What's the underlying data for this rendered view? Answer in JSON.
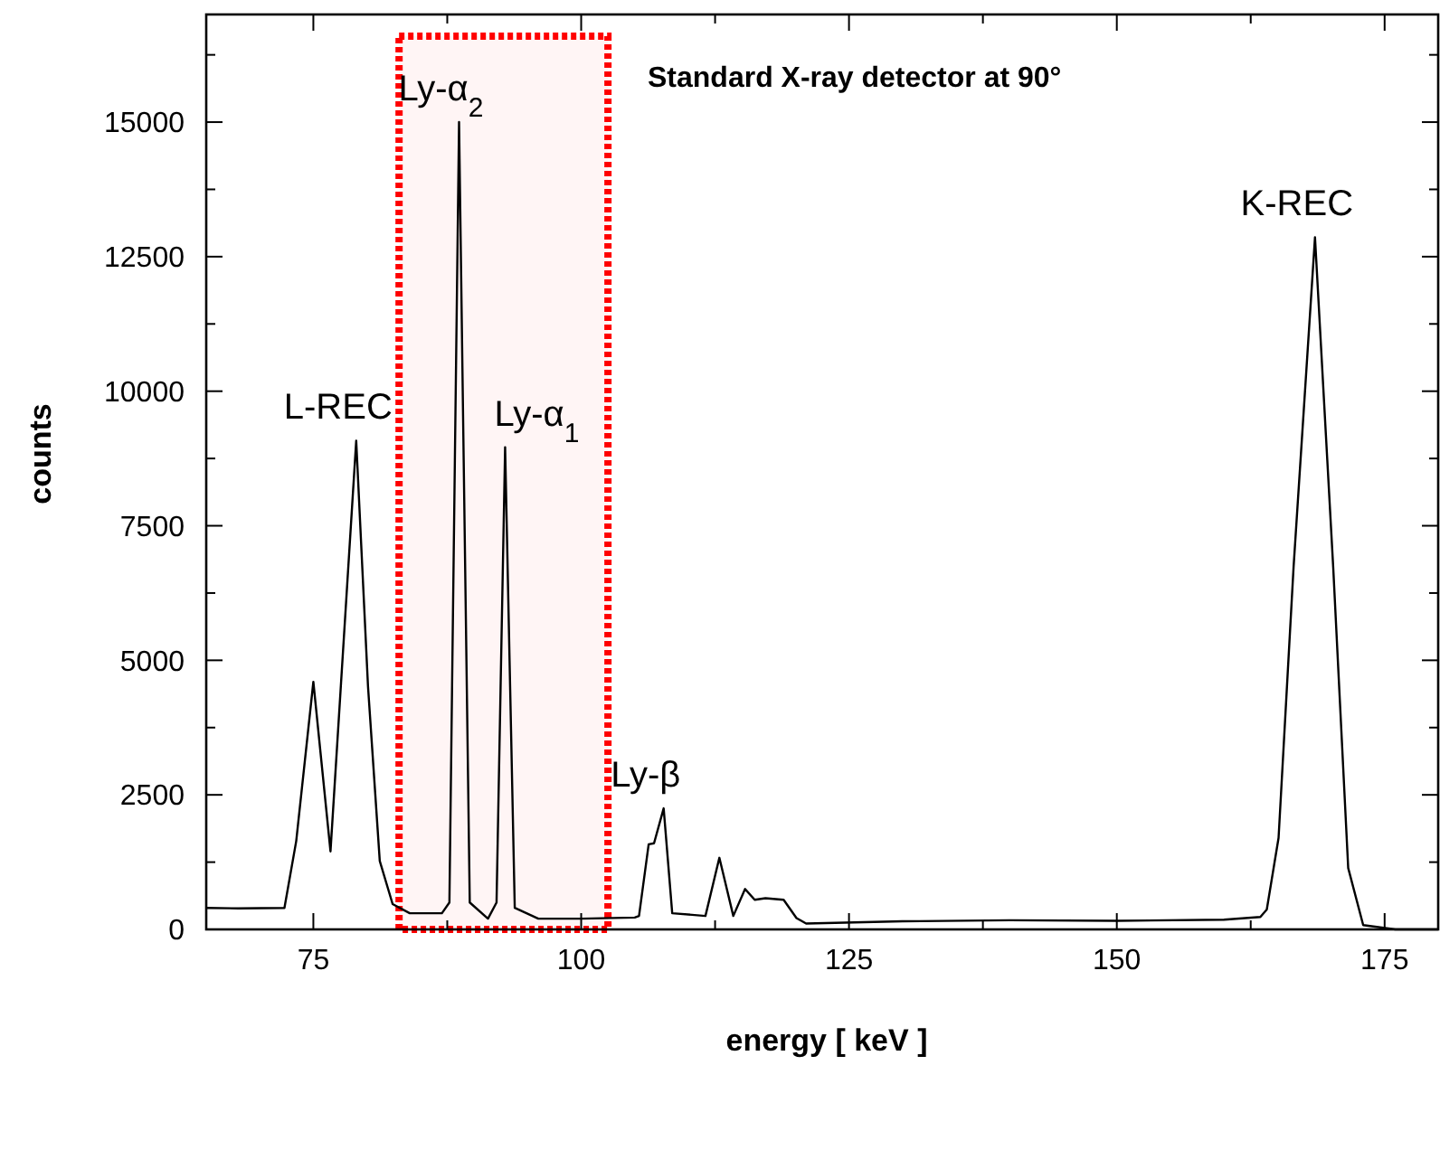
{
  "chart_data": {
    "type": "line",
    "title": "Standard X-ray detector at 90°",
    "xlabel": "energy [ keV ]",
    "ylabel": "counts",
    "xlim": [
      65,
      180
    ],
    "ylim": [
      0,
      17000
    ],
    "xticks": [
      75,
      {
        "value": 87.5,
        "label": null
      },
      100,
      {
        "value": 112.5,
        "label": null
      },
      125,
      {
        "value": 137.5,
        "label": null
      },
      150,
      {
        "value": 162.5,
        "label": null
      },
      175
    ],
    "yticks": [
      0,
      {
        "value": 1250,
        "label": null
      },
      2500,
      {
        "value": 3750,
        "label": null
      },
      5000,
      {
        "value": 6250,
        "label": null
      },
      7500,
      {
        "value": 8750,
        "label": null
      },
      10000,
      {
        "value": 11250,
        "label": null
      },
      12500,
      {
        "value": 13750,
        "label": null
      },
      15000,
      {
        "value": 16250,
        "label": null
      }
    ],
    "grid": false,
    "marker": "none",
    "line_style": "solid",
    "series": [
      {
        "color": "#000000",
        "x": [
          65,
          68,
          72.3,
          73.4,
          75,
          76.6,
          79,
          80.1,
          81.2,
          82.4,
          84,
          87,
          87.7,
          88.6,
          89.6,
          91.3,
          92.1,
          92.9,
          93.8,
          96,
          100,
          105,
          105.4,
          106.3,
          106.8,
          107.7,
          108.5,
          111.6,
          112.9,
          114.2,
          115.3,
          116.2,
          117.2,
          118.9,
          120.1,
          121,
          130,
          140,
          150,
          160,
          163.4,
          164,
          165.1,
          166.5,
          168.5,
          170.2,
          171.6,
          173,
          176,
          180
        ],
        "values": [
          400,
          390,
          400,
          1640,
          4600,
          1450,
          9080,
          4520,
          1270,
          470,
          300,
          300,
          500,
          15000,
          500,
          200,
          500,
          8960,
          400,
          200,
          200,
          220,
          250,
          1580,
          1600,
          2250,
          300,
          250,
          1330,
          250,
          750,
          550,
          580,
          550,
          210,
          110,
          150,
          170,
          160,
          180,
          230,
          370,
          1700,
          6730,
          12860,
          6730,
          1140,
          80,
          0,
          0
        ]
      }
    ],
    "bands": [
      {
        "axis": "x",
        "from": 83,
        "to": 102.5,
        "color": "#ff0000"
      }
    ],
    "annotations": [
      {
        "text": "L-REC",
        "x": 79,
        "y": 9080
      },
      {
        "text": "Ly-α$_{2}$",
        "x": 88.6,
        "y": 15000
      },
      {
        "text": "Ly-α$_{1}$",
        "x": 92.9,
        "y": 8960
      },
      {
        "text": "Ly-β",
        "x": 107.7,
        "y": 2250
      },
      {
        "text": "K-REC",
        "x": 168.5,
        "y": 12860
      }
    ]
  }
}
